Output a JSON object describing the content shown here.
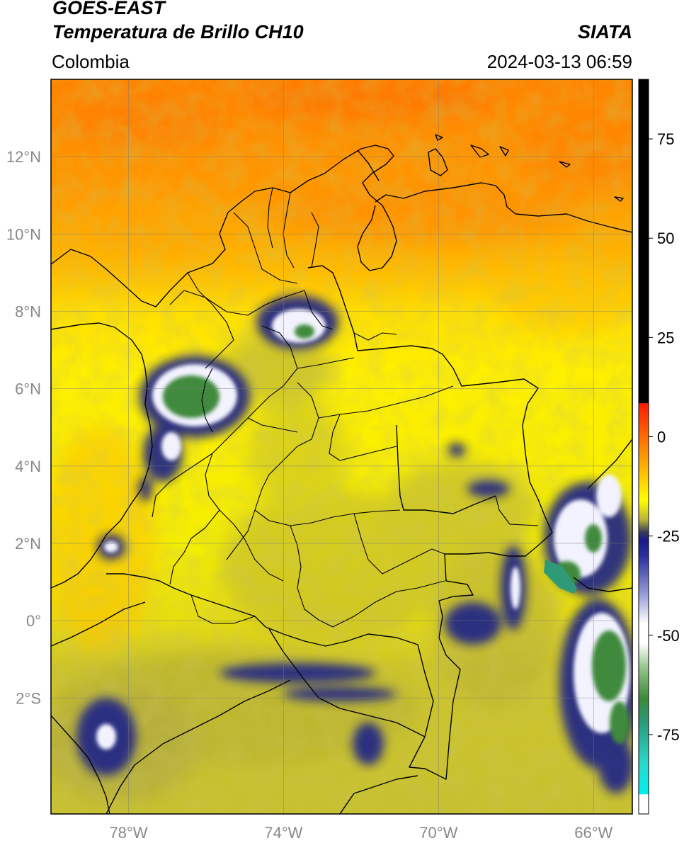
{
  "header": {
    "satellite": "GOES-EAST",
    "product": "Temperatura de Brillo CH10",
    "region": "Colombia",
    "agency": "SIATA",
    "datetime": "2024-03-13 06:59"
  },
  "map": {
    "lon_range": [
      -80,
      -65
    ],
    "lat_range": [
      -5,
      14
    ],
    "lat_ticks": [
      {
        "value": 12,
        "label": "12°N"
      },
      {
        "value": 10,
        "label": "10°N"
      },
      {
        "value": 8,
        "label": "8°N"
      },
      {
        "value": 6,
        "label": "6°N"
      },
      {
        "value": 4,
        "label": "4°N"
      },
      {
        "value": 2,
        "label": "2°N"
      },
      {
        "value": 0,
        "label": "0°"
      },
      {
        "value": -2,
        "label": "2°S"
      }
    ],
    "lon_ticks": [
      {
        "value": -78,
        "label": "78°W"
      },
      {
        "value": -74,
        "label": "74°W"
      },
      {
        "value": -70,
        "label": "70°W"
      },
      {
        "value": -66,
        "label": "66°W"
      }
    ],
    "gridlines": true,
    "colors": {
      "warm_north": "#ff8a00",
      "mid": "#ffd200",
      "yellow": "#f6f000",
      "olive": "#c8c233",
      "cold_blue": "#1c2088",
      "cold_white": "#f2f2ff",
      "cold_green": "#3f8a3c"
    }
  },
  "colorbar": {
    "range": [
      -95,
      90
    ],
    "ticks": [
      {
        "value": 75,
        "label": "75"
      },
      {
        "value": 50,
        "label": "50"
      },
      {
        "value": 25,
        "label": "25"
      },
      {
        "value": 0,
        "label": "0"
      },
      {
        "value": -25,
        "label": "-25"
      },
      {
        "value": -50,
        "label": "-50"
      },
      {
        "value": -75,
        "label": "-75"
      }
    ],
    "stops": [
      {
        "value": 90,
        "color": "#000000"
      },
      {
        "value": 8.5,
        "color": "#000000"
      },
      {
        "value": 8.4,
        "color": "#ff1a00"
      },
      {
        "value": 0,
        "color": "#ff6a00"
      },
      {
        "value": -10,
        "color": "#ffc800"
      },
      {
        "value": -16,
        "color": "#ffff00"
      },
      {
        "value": -21,
        "color": "#b5b23a"
      },
      {
        "value": -24,
        "color": "#3b3b5a"
      },
      {
        "value": -26,
        "color": "#1a1a8a"
      },
      {
        "value": -30,
        "color": "#2a2fa0"
      },
      {
        "value": -40,
        "color": "#9aa0d8"
      },
      {
        "value": -47,
        "color": "#ffffff"
      },
      {
        "value": -52,
        "color": "#ffffff"
      },
      {
        "value": -58,
        "color": "#98c690"
      },
      {
        "value": -66,
        "color": "#3a8a3a"
      },
      {
        "value": -72,
        "color": "#2a9a7a"
      },
      {
        "value": -82,
        "color": "#2ad8c8"
      },
      {
        "value": -90,
        "color": "#00f0f0"
      },
      {
        "value": -90.1,
        "color": "#ffffff"
      },
      {
        "value": -95,
        "color": "#ffffff"
      }
    ]
  }
}
